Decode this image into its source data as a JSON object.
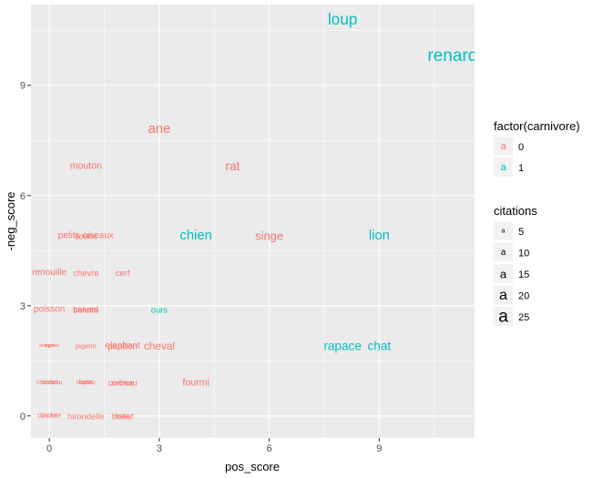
{
  "chart_data": {
    "type": "scatter",
    "marker": "text",
    "xlabel": "pos_score",
    "ylabel": "-neg_score",
    "xlim": [
      -0.5,
      11.6
    ],
    "ylim": [
      -0.6,
      11.2
    ],
    "x_ticks": [
      0,
      3,
      6,
      9
    ],
    "y_ticks": [
      0,
      3,
      6,
      9
    ],
    "grid": true,
    "legend_position": "right",
    "colors": {
      "0": "#F8766D",
      "1": "#00BFC4"
    },
    "color_legend": {
      "title": "factor(carnivore)",
      "entries": [
        "0",
        "1"
      ]
    },
    "size_legend": {
      "title": "citations",
      "entries": [
        5,
        10,
        15,
        20,
        25
      ]
    },
    "points": [
      {
        "label": "loup",
        "x": 8.0,
        "y": 10.8,
        "carnivore": "1",
        "citations": 22
      },
      {
        "label": "renard",
        "x": 11.0,
        "y": 9.8,
        "carnivore": "1",
        "citations": 25
      },
      {
        "label": "ane",
        "x": 3.0,
        "y": 7.8,
        "carnivore": "0",
        "citations": 18
      },
      {
        "label": "rat",
        "x": 5.0,
        "y": 6.8,
        "carnivore": "0",
        "citations": 16
      },
      {
        "label": "mouton",
        "x": 1.0,
        "y": 6.8,
        "carnivore": "0",
        "citations": 11
      },
      {
        "label": "chien",
        "x": 4.0,
        "y": 4.9,
        "carnivore": "1",
        "citations": 18
      },
      {
        "label": "singe",
        "x": 6.0,
        "y": 4.9,
        "carnivore": "0",
        "citations": 15
      },
      {
        "label": "lion",
        "x": 9.0,
        "y": 4.9,
        "carnivore": "1",
        "citations": 18
      },
      {
        "label": "petits oiseaux",
        "x": 1.0,
        "y": 4.9,
        "carnivore": "0",
        "citations": 10
      },
      {
        "label": "souris",
        "x": 1.0,
        "y": 4.9,
        "carnivore": "0",
        "citations": 9
      },
      {
        "label": "renouille",
        "x": 0.0,
        "y": 3.9,
        "carnivore": "0",
        "citations": 10
      },
      {
        "label": "chevre",
        "x": 1.0,
        "y": 3.9,
        "carnivore": "0",
        "citations": 9
      },
      {
        "label": "cerf",
        "x": 2.0,
        "y": 3.9,
        "carnivore": "0",
        "citations": 9
      },
      {
        "label": "poisson",
        "x": 0.0,
        "y": 2.9,
        "carnivore": "0",
        "citations": 10
      },
      {
        "label": "belette",
        "x": 1.0,
        "y": 2.9,
        "carnivore": "0",
        "citations": 9
      },
      {
        "label": "canard",
        "x": 1.0,
        "y": 2.9,
        "carnivore": "0",
        "citations": 8
      },
      {
        "label": "ours",
        "x": 3.0,
        "y": 2.9,
        "carnivore": "1",
        "citations": 9
      },
      {
        "label": "rapace",
        "x": 8.0,
        "y": 1.9,
        "carnivore": "1",
        "citations": 16
      },
      {
        "label": "chat",
        "x": 9.0,
        "y": 1.9,
        "carnivore": "1",
        "citations": 16
      },
      {
        "label": "cheval",
        "x": 3.0,
        "y": 1.9,
        "carnivore": "0",
        "citations": 13
      },
      {
        "label": "elephant",
        "x": 2.0,
        "y": 1.9,
        "carnivore": "0",
        "citations": 10
      },
      {
        "label": "papillon",
        "x": 2.0,
        "y": 1.9,
        "carnivore": "0",
        "citations": 9
      },
      {
        "label": "pigeon",
        "x": 1.0,
        "y": 1.9,
        "carnivore": "0",
        "citations": 6
      },
      {
        "label": "araignee",
        "x": 0.0,
        "y": 1.9,
        "carnivore": "0",
        "citations": 3
      },
      {
        "label": "tigre",
        "x": 0.0,
        "y": 1.9,
        "carnivore": "0",
        "citations": 3
      },
      {
        "label": "fourmi",
        "x": 4.0,
        "y": 0.9,
        "carnivore": "0",
        "citations": 11
      },
      {
        "label": "corbeau",
        "x": 2.0,
        "y": 0.9,
        "carnivore": "0",
        "citations": 8
      },
      {
        "label": "cochon",
        "x": 2.0,
        "y": 0.9,
        "carnivore": "0",
        "citations": 6
      },
      {
        "label": "oiseau",
        "x": 1.0,
        "y": 0.9,
        "carnivore": "0",
        "citations": 5
      },
      {
        "label": "lapin",
        "x": 1.0,
        "y": 0.9,
        "carnivore": "0",
        "citations": 5
      },
      {
        "label": "chameau",
        "x": 0.0,
        "y": 0.9,
        "carnivore": "0",
        "citations": 5
      },
      {
        "label": "crabe",
        "x": 0.0,
        "y": 0.9,
        "carnivore": "0",
        "citations": 5
      },
      {
        "label": "hirondelle",
        "x": 1.0,
        "y": 0.0,
        "carnivore": "0",
        "citations": 9
      },
      {
        "label": "boeuf",
        "x": 2.0,
        "y": 0.0,
        "carnivore": "0",
        "citations": 9
      },
      {
        "label": "bete",
        "x": 2.0,
        "y": 0.0,
        "carnivore": "0",
        "citations": 7
      },
      {
        "label": "chouette",
        "x": 0.0,
        "y": 0.0,
        "carnivore": "0",
        "citations": 5
      },
      {
        "label": "vache",
        "x": 0.0,
        "y": 0.0,
        "carnivore": "0",
        "citations": 5
      }
    ]
  }
}
